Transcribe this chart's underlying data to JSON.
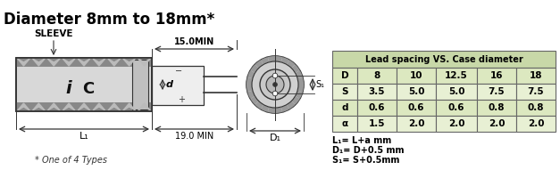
{
  "title": "Diameter 8mm to 18mm*",
  "title_fontsize": 12,
  "background_color": "#ffffff",
  "table_header": "Lead spacing VS. Case diameter",
  "table_header_bg": "#c8d8a8",
  "table_row_bg_D": "#dce8c0",
  "table_row_bg_S": "#e8f0d4",
  "table_row_bg_d": "#dce8c0",
  "table_row_bg_a": "#e8f0d4",
  "table_border_color": "#888888",
  "col_headers": [
    "D",
    "8",
    "10",
    "12.5",
    "16",
    "18"
  ],
  "rows": [
    [
      "S",
      "3.5",
      "5.0",
      "5.0",
      "7.5",
      "7.5"
    ],
    [
      "d",
      "0.6",
      "0.6",
      "0.6",
      "0.8",
      "0.8"
    ],
    [
      "α",
      "1.5",
      "2.0",
      "2.0",
      "2.0",
      "2.0"
    ]
  ],
  "footnotes": [
    "L₁= L+a mm",
    "D₁= D+0.5 mm",
    "S₁= S+0.5mm"
  ],
  "dim_15min": "15.0MIN",
  "dim_19min": "19.0 MIN",
  "dim_L1": "L₁",
  "dim_D1": "D₁",
  "dim_S1": "S₁",
  "dim_d": "d",
  "sleeve_label": "SLEEVE",
  "footnote_bottom": "* One of 4 Types",
  "line_color": "#333333",
  "dark_color": "#111111"
}
